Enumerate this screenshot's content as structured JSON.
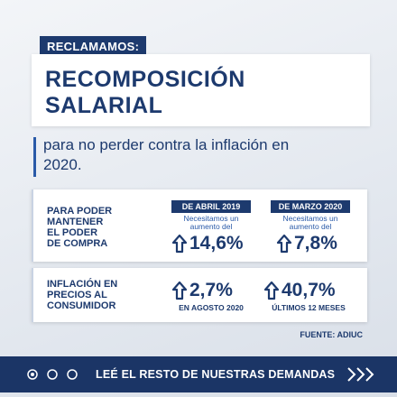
{
  "header": {
    "tag": "RECLAMAMOS:",
    "title_lines": [
      "RECOMPOSICIÓN",
      "SALARIAL"
    ],
    "subtitle_lines": [
      "para no perder contra la inflación en",
      "2020."
    ]
  },
  "panels": [
    {
      "label_lines": [
        "PARA PODER",
        "MANTENER",
        "EL PODER",
        "DE COMPRA"
      ],
      "items": [
        {
          "heading": "DE ABRIL 2019",
          "note_lines": [
            "Necesitamos un",
            "aumento del"
          ],
          "value": "14,6%"
        },
        {
          "heading": "DE MARZO 2020",
          "note_lines": [
            "Necesitamos un",
            "aumento del"
          ],
          "value": "7,8%"
        }
      ]
    },
    {
      "label_lines": [
        "INFLACIÓN EN",
        "PRECIOS AL",
        "CONSUMIDOR"
      ],
      "items": [
        {
          "value": "2,7%",
          "caption": "EN AGOSTO 2020"
        },
        {
          "value": "40,7%",
          "caption": "ÚLTIMOS 12 MESES"
        }
      ]
    }
  ],
  "source": "FUENTE: ADIUC",
  "footer": {
    "cta": "LEÉ EL RESTO DE NUESTRAS DEMANDAS"
  }
}
